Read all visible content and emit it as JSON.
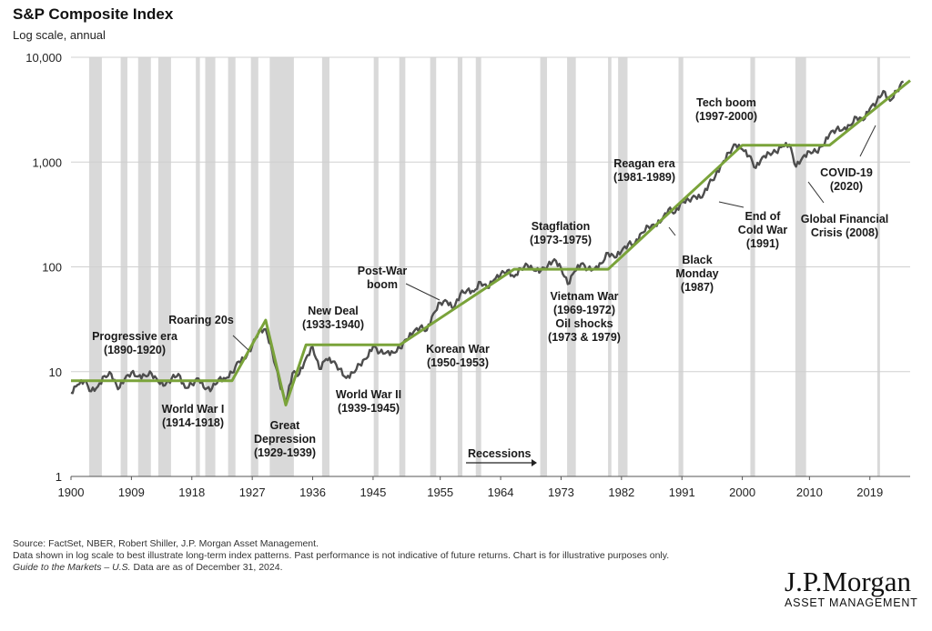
{
  "chart_data": {
    "type": "line",
    "title": "S&P Composite Index",
    "subtitle": "Log scale, annual",
    "y_scale": "log",
    "ylim": [
      1,
      10000
    ],
    "xlim": [
      1900,
      2025
    ],
    "y_ticks": [
      1,
      10,
      100,
      1000,
      10000
    ],
    "y_tick_labels": [
      "1",
      "10",
      "100",
      "1,000",
      "10,000"
    ],
    "x_ticks": [
      1900,
      1909,
      1918,
      1927,
      1936,
      1945,
      1955,
      1964,
      1973,
      1982,
      1991,
      2000,
      2010,
      2019
    ],
    "x_tick_labels": [
      "1900",
      "1909",
      "1918",
      "1927",
      "1936",
      "1945",
      "1955",
      "1964",
      "1973",
      "1982",
      "1991",
      "2000",
      "2010",
      "2019"
    ],
    "grid": "horizontal",
    "colors": {
      "index_line": "#4d4d4d",
      "trend_line": "#7aa33a",
      "recession_band": "#d9d9d9",
      "grid": "#d0d0d0"
    },
    "series": [
      {
        "values": [
          [
            1900,
            6.3
          ],
          [
            1901,
            7.5
          ],
          [
            1902,
            8.2
          ],
          [
            1903,
            6.5
          ],
          [
            1904,
            7.2
          ],
          [
            1905,
            9.1
          ],
          [
            1906,
            9.5
          ],
          [
            1907,
            6.8
          ],
          [
            1908,
            8.5
          ],
          [
            1909,
            9.8
          ],
          [
            1910,
            9.0
          ],
          [
            1911,
            9.2
          ],
          [
            1912,
            9.6
          ],
          [
            1913,
            8.0
          ],
          [
            1914,
            7.4
          ],
          [
            1915,
            8.6
          ],
          [
            1916,
            9.5
          ],
          [
            1917,
            7.0
          ],
          [
            1918,
            7.6
          ],
          [
            1919,
            8.6
          ],
          [
            1920,
            6.8
          ],
          [
            1921,
            6.9
          ],
          [
            1922,
            8.5
          ],
          [
            1923,
            8.6
          ],
          [
            1924,
            9.8
          ],
          [
            1925,
            12.5
          ],
          [
            1926,
            13.4
          ],
          [
            1927,
            17.7
          ],
          [
            1928,
            24.4
          ],
          [
            1929,
            25.5
          ],
          [
            1930,
            15.3
          ],
          [
            1931,
            8.1
          ],
          [
            1932,
            5.0
          ],
          [
            1933,
            9.7
          ],
          [
            1934,
            9.5
          ],
          [
            1935,
            13.4
          ],
          [
            1936,
            17.2
          ],
          [
            1937,
            10.6
          ],
          [
            1938,
            13.2
          ],
          [
            1939,
            12.5
          ],
          [
            1940,
            10.6
          ],
          [
            1941,
            8.7
          ],
          [
            1942,
            9.8
          ],
          [
            1943,
            11.7
          ],
          [
            1944,
            13.3
          ],
          [
            1945,
            17.4
          ],
          [
            1946,
            15.3
          ],
          [
            1947,
            15.3
          ],
          [
            1948,
            15.2
          ],
          [
            1949,
            16.8
          ],
          [
            1950,
            20.4
          ],
          [
            1951,
            23.8
          ],
          [
            1952,
            26.6
          ],
          [
            1953,
            24.8
          ],
          [
            1954,
            35.9
          ],
          [
            1955,
            45.5
          ],
          [
            1956,
            46.7
          ],
          [
            1957,
            39.9
          ],
          [
            1958,
            55.2
          ],
          [
            1959,
            59.9
          ],
          [
            1960,
            58.1
          ],
          [
            1961,
            71.6
          ],
          [
            1962,
            63.1
          ],
          [
            1963,
            75.0
          ],
          [
            1964,
            84.8
          ],
          [
            1965,
            92.4
          ],
          [
            1966,
            80.3
          ],
          [
            1967,
            96.5
          ],
          [
            1968,
            103.9
          ],
          [
            1969,
            92.1
          ],
          [
            1970,
            92.2
          ],
          [
            1971,
            102.1
          ],
          [
            1972,
            118.1
          ],
          [
            1973,
            97.6
          ],
          [
            1974,
            68.6
          ],
          [
            1975,
            90.2
          ],
          [
            1976,
            107.5
          ],
          [
            1977,
            95.1
          ],
          [
            1978,
            96.1
          ],
          [
            1979,
            107.9
          ],
          [
            1980,
            135.8
          ],
          [
            1981,
            122.6
          ],
          [
            1982,
            140.6
          ],
          [
            1983,
            164.9
          ],
          [
            1984,
            167.2
          ],
          [
            1985,
            211.3
          ],
          [
            1986,
            242.2
          ],
          [
            1987,
            247.1
          ],
          [
            1988,
            277.7
          ],
          [
            1989,
            353.4
          ],
          [
            1990,
            330.2
          ],
          [
            1991,
            417.1
          ],
          [
            1992,
            435.7
          ],
          [
            1993,
            466.5
          ],
          [
            1994,
            459.3
          ],
          [
            1995,
            615.9
          ],
          [
            1996,
            740.7
          ],
          [
            1997,
            970.4
          ],
          [
            1998,
            1229.2
          ],
          [
            1999,
            1469.3
          ],
          [
            2000,
            1320.3
          ],
          [
            2001,
            1148.1
          ],
          [
            2002,
            879.8
          ],
          [
            2003,
            1111.9
          ],
          [
            2004,
            1211.9
          ],
          [
            2005,
            1248.3
          ],
          [
            2006,
            1418.3
          ],
          [
            2007,
            1468.4
          ],
          [
            2008,
            903.3
          ],
          [
            2009,
            1115.1
          ],
          [
            2010,
            1257.6
          ],
          [
            2011,
            1257.6
          ],
          [
            2012,
            1426.2
          ],
          [
            2013,
            1848.4
          ],
          [
            2014,
            2058.9
          ],
          [
            2015,
            2043.9
          ],
          [
            2016,
            2238.8
          ],
          [
            2017,
            2673.6
          ],
          [
            2018,
            2506.9
          ],
          [
            2019,
            3230.8
          ],
          [
            2020,
            3756.1
          ],
          [
            2021,
            4766.2
          ],
          [
            2022,
            3839.5
          ],
          [
            2023,
            4769.8
          ],
          [
            2024,
            5881.6
          ]
        ]
      },
      {
        "values": [
          [
            1900,
            8.2
          ],
          [
            1924,
            8.2
          ],
          [
            1929,
            31
          ],
          [
            1932,
            4.8
          ],
          [
            1935,
            18
          ],
          [
            1949,
            18
          ],
          [
            1966,
            95
          ],
          [
            1980,
            95
          ],
          [
            2000,
            1450
          ],
          [
            2013,
            1450
          ],
          [
            2025,
            6000
          ]
        ]
      }
    ],
    "recessions": [
      [
        1902.7,
        1904.6
      ],
      [
        1907.4,
        1908.4
      ],
      [
        1910.0,
        1911.9
      ],
      [
        1913.0,
        1914.9
      ],
      [
        1918.6,
        1919.2
      ],
      [
        1920.0,
        1921.5
      ],
      [
        1923.4,
        1924.5
      ],
      [
        1926.8,
        1927.9
      ],
      [
        1929.6,
        1933.2
      ],
      [
        1937.4,
        1938.5
      ],
      [
        1945.1,
        1945.8
      ],
      [
        1948.9,
        1949.8
      ],
      [
        1953.5,
        1954.4
      ],
      [
        1957.6,
        1958.3
      ],
      [
        1960.3,
        1961.1
      ],
      [
        1969.9,
        1970.9
      ],
      [
        1973.9,
        1975.2
      ],
      [
        1980.0,
        1980.5
      ],
      [
        1981.5,
        1982.9
      ],
      [
        1990.5,
        1991.2
      ],
      [
        2001.2,
        2001.9
      ],
      [
        2007.9,
        2009.5
      ],
      [
        2020.1,
        2020.4
      ]
    ],
    "annotations": [
      {
        "key": "progressive",
        "lines": [
          "Progressive era",
          "(1890-1920)"
        ]
      },
      {
        "key": "wwi",
        "lines": [
          "World War I",
          "(1914-1918)"
        ]
      },
      {
        "key": "roaring",
        "lines": [
          "Roaring 20s"
        ]
      },
      {
        "key": "depression",
        "lines": [
          "Great",
          "Depression",
          "(1929-1939)"
        ]
      },
      {
        "key": "newdeal",
        "lines": [
          "New Deal",
          "(1933-1940)"
        ]
      },
      {
        "key": "wwii",
        "lines": [
          "World War II",
          "(1939-1945)"
        ]
      },
      {
        "key": "postwar",
        "lines": [
          "Post-War",
          "boom"
        ]
      },
      {
        "key": "korean",
        "lines": [
          "Korean War",
          "(1950-1953)"
        ]
      },
      {
        "key": "stagflation",
        "lines": [
          "Stagflation",
          "(1973-1975)"
        ]
      },
      {
        "key": "vietnam",
        "lines": [
          "Vietnam War",
          "(1969-1972)",
          "Oil shocks",
          "(1973 & 1979)"
        ]
      },
      {
        "key": "reagan",
        "lines": [
          "Reagan era",
          "(1981-1989)"
        ]
      },
      {
        "key": "blackmonday",
        "lines": [
          "Black",
          "Monday",
          "(1987)"
        ]
      },
      {
        "key": "coldwar",
        "lines": [
          "End of",
          "Cold War",
          "(1991)"
        ]
      },
      {
        "key": "techboom",
        "lines": [
          "Tech boom",
          "(1997-2000)"
        ]
      },
      {
        "key": "gfc",
        "lines": [
          "Global Financial",
          "Crisis (2008)"
        ]
      },
      {
        "key": "covid",
        "lines": [
          "COVID-19",
          "(2020)"
        ]
      }
    ],
    "legend": {
      "label": "Recessions"
    }
  },
  "footer": {
    "source": "Source: FactSet, NBER, Robert Shiller, J.P. Morgan Asset Management.",
    "note": "Data shown in log scale to best illustrate long-term index patterns. Past performance is not indicative of future returns. Chart is for illustrative purposes only.",
    "guide_title": "Guide to the Markets – U.S.",
    "as_of": " Data are as of December 31, 2024."
  },
  "logo": {
    "name": "J.P.Morgan",
    "sub": "ASSET MANAGEMENT"
  }
}
